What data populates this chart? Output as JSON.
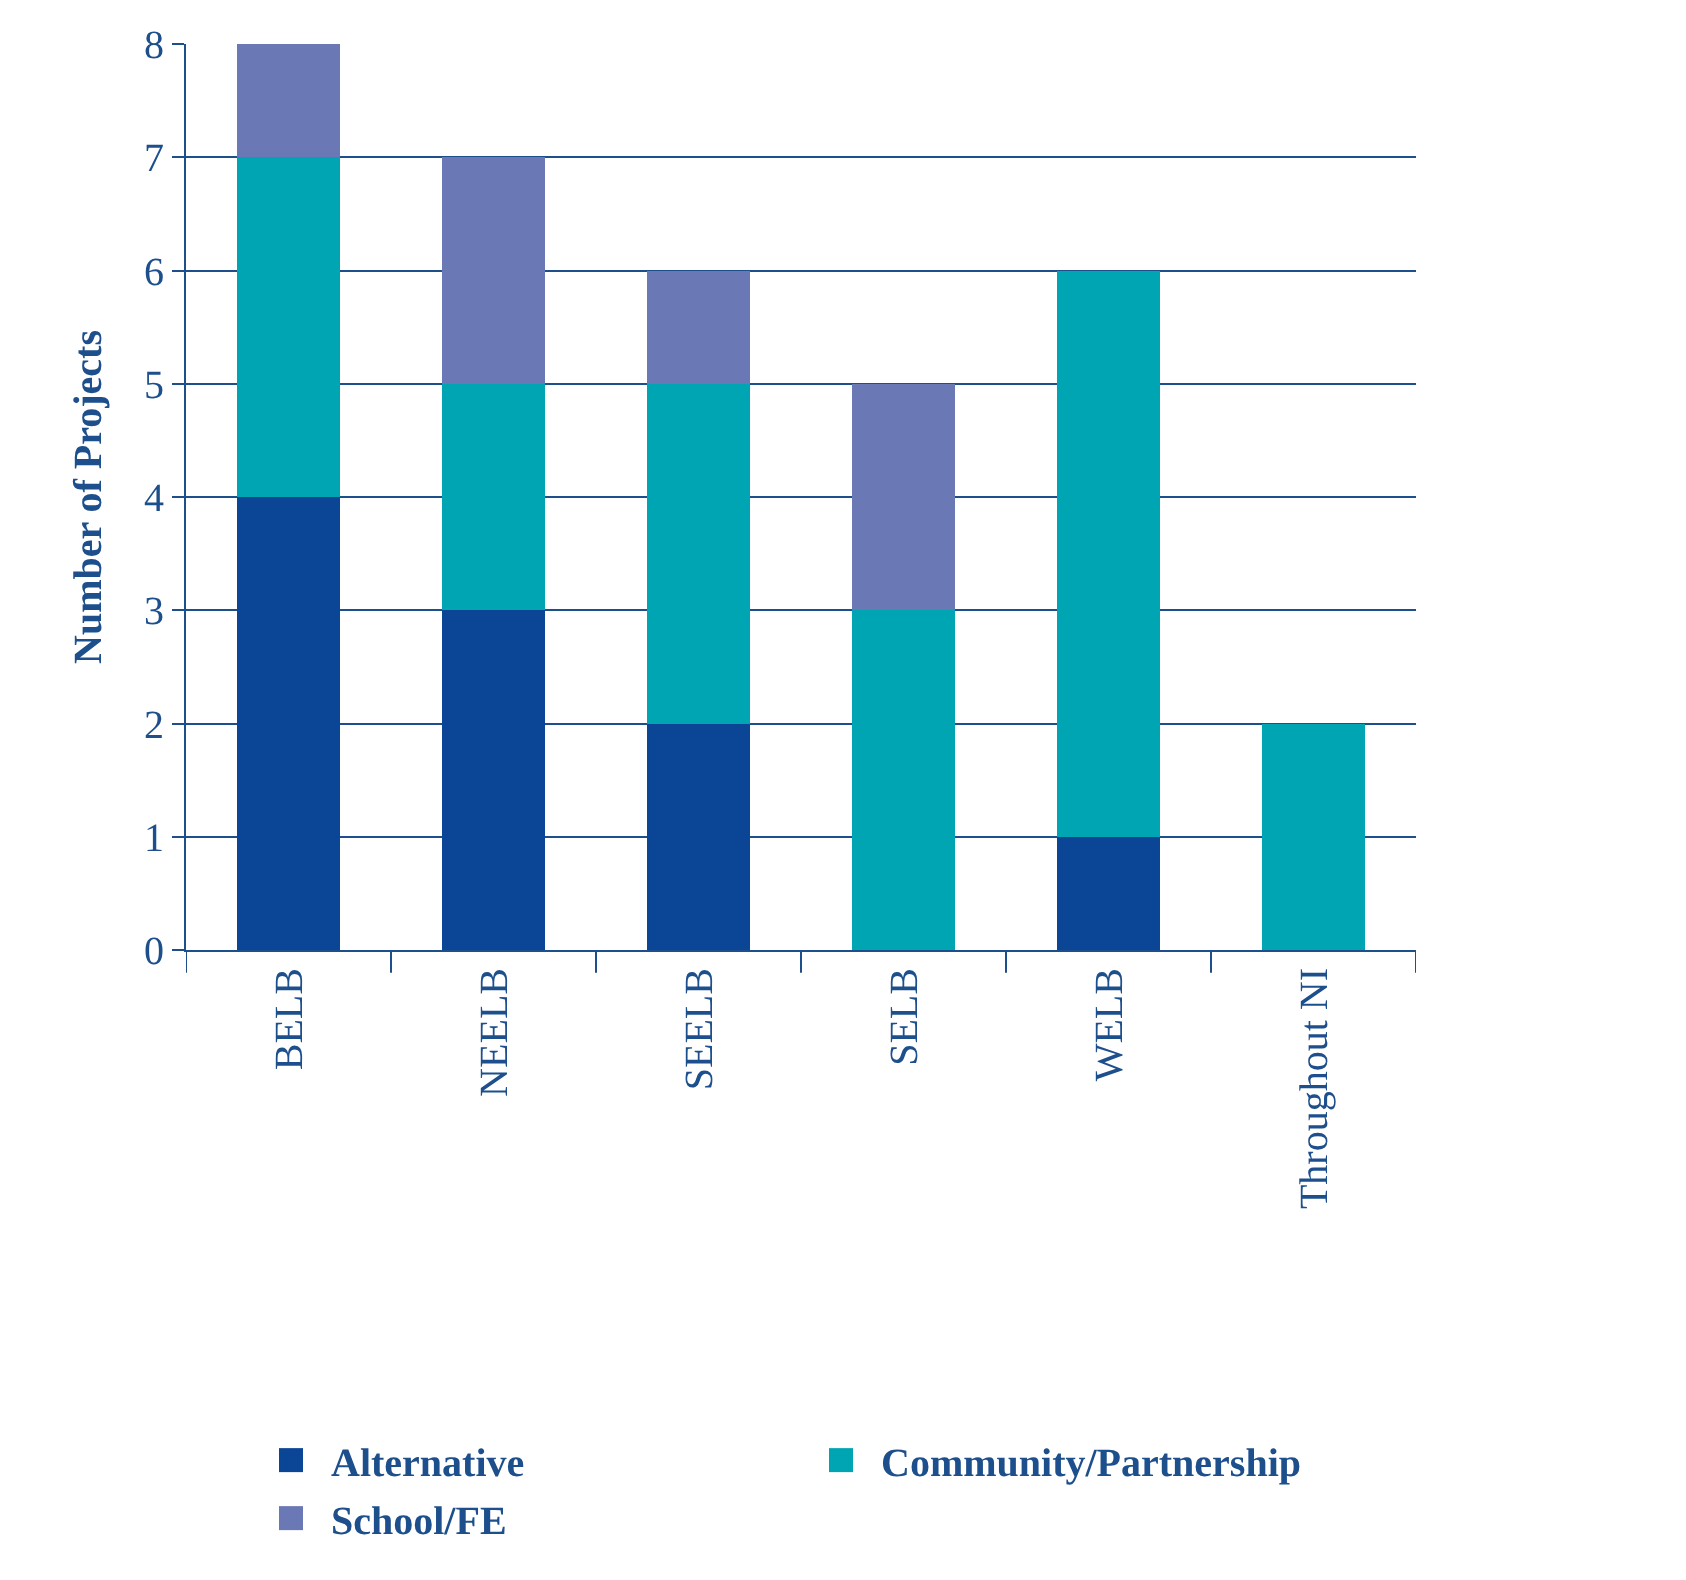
{
  "chart_data": {
    "type": "bar",
    "ylabel": "Number of Projects",
    "stacked": true,
    "categories": [
      "BELB",
      "NEELB",
      "SEELB",
      "SELB",
      "WELB",
      "Throughout NI"
    ],
    "series": [
      {
        "name": "Alternative",
        "color": "#0b4595",
        "values": [
          4,
          3,
          2,
          0,
          1,
          0
        ]
      },
      {
        "name": "Community/Partnership",
        "color": "#00a5b4",
        "values": [
          3,
          2,
          3,
          3,
          5,
          2
        ]
      },
      {
        "name": "School/FE",
        "color": "#6b78b6",
        "values": [
          1,
          2,
          1,
          2,
          0,
          0
        ]
      }
    ],
    "ylim": [
      0,
      8
    ],
    "yticks": [
      0,
      1,
      2,
      3,
      4,
      5,
      6,
      7,
      8
    ],
    "grid": "y",
    "legend": "bottom"
  }
}
